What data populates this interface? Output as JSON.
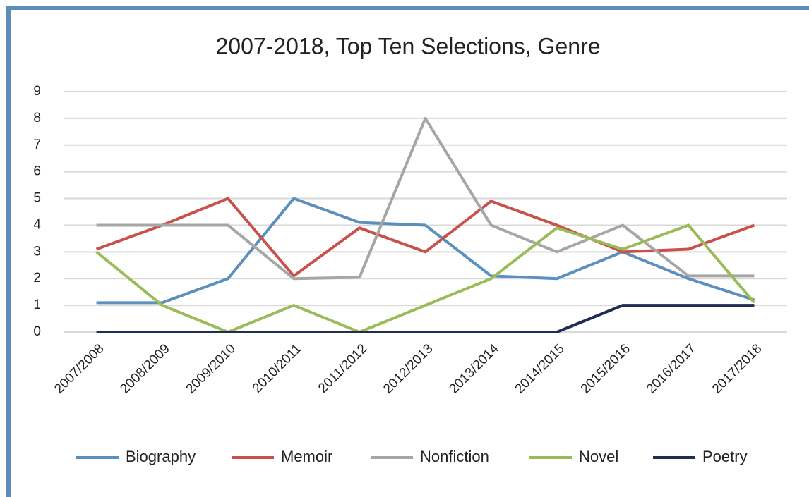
{
  "chart_data": {
    "type": "line",
    "title": "2007-2018, Top Ten Selections, Genre",
    "categories": [
      "2007/2008",
      "2008/2009",
      "2009/2010",
      "2010/2011",
      "2011/2012",
      "2012/2013",
      "2013/2014",
      "2014/2015",
      "2015/2016",
      "2016/2017",
      "2017/2018"
    ],
    "series": [
      {
        "name": "Biography",
        "color": "#5b8fbe",
        "values": [
          1.1,
          1.1,
          2,
          5,
          4.1,
          4,
          2.1,
          2,
          3,
          2,
          1.2
        ]
      },
      {
        "name": "Memoir",
        "color": "#c9504b",
        "values": [
          3.1,
          4,
          5,
          2.1,
          3.9,
          3,
          4.9,
          4,
          3,
          3.1,
          4
        ]
      },
      {
        "name": "Nonfiction",
        "color": "#a6a6a6",
        "values": [
          4,
          4,
          4,
          2,
          2.05,
          8,
          4,
          3,
          4,
          2.1,
          2.1
        ]
      },
      {
        "name": "Novel",
        "color": "#9bbb59",
        "values": [
          3,
          1,
          0,
          1,
          0,
          1,
          2,
          3.9,
          3.1,
          4,
          1.1
        ]
      },
      {
        "name": "Poetry",
        "color": "#1f2d52",
        "values": [
          0,
          0,
          0,
          0,
          0,
          0,
          0,
          0,
          1,
          1,
          1
        ]
      }
    ],
    "ylim": [
      0,
      9
    ],
    "yticks": [
      0,
      1,
      2,
      3,
      4,
      5,
      6,
      7,
      8,
      9
    ],
    "grid": true,
    "legend": "bottom"
  }
}
